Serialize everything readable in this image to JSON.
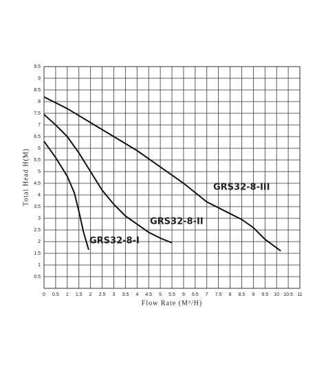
{
  "chart_data": {
    "type": "line",
    "x_label": "Flow Rate (M³/H)",
    "y_label": "Total Head H(M)",
    "xlim": [
      0,
      11
    ],
    "ylim": [
      0,
      9.5
    ],
    "xticks": [
      0,
      0.5,
      1,
      1.5,
      2,
      2.5,
      3,
      3.5,
      4,
      4.5,
      5,
      5.5,
      6,
      6.5,
      7,
      7.5,
      8,
      8.5,
      9,
      9.5,
      10,
      10.5,
      11
    ],
    "yticks": [
      0.5,
      1,
      1.5,
      2,
      2.5,
      3,
      3.5,
      4,
      4.5,
      5,
      5.5,
      6,
      6.5,
      7,
      7.5,
      8,
      8.5,
      9,
      9.5
    ],
    "grid": true,
    "series": [
      {
        "name": "GRS32-8-I",
        "color": "#111111",
        "x": [
          0,
          0.5,
          1,
          1.3,
          1.5,
          1.7,
          1.92
        ],
        "values": [
          6.3,
          5.6,
          4.8,
          4.1,
          3.3,
          2.4,
          1.65
        ]
      },
      {
        "name": "GRS32-8-II",
        "color": "#111111",
        "x": [
          0,
          0.5,
          1,
          1.5,
          2,
          2.5,
          3,
          3.5,
          4,
          4.5,
          5,
          5.5
        ],
        "values": [
          7.45,
          7.0,
          6.5,
          5.8,
          5.0,
          4.2,
          3.6,
          3.1,
          2.75,
          2.4,
          2.15,
          1.95
        ]
      },
      {
        "name": "GRS32-8-III",
        "color": "#111111",
        "x": [
          0,
          1,
          2,
          3,
          4,
          5,
          6,
          7,
          8,
          8.5,
          9,
          9.5,
          10.18
        ],
        "values": [
          8.2,
          7.7,
          7.1,
          6.5,
          5.9,
          5.2,
          4.5,
          3.7,
          3.2,
          2.95,
          2.6,
          2.1,
          1.6
        ]
      }
    ]
  }
}
